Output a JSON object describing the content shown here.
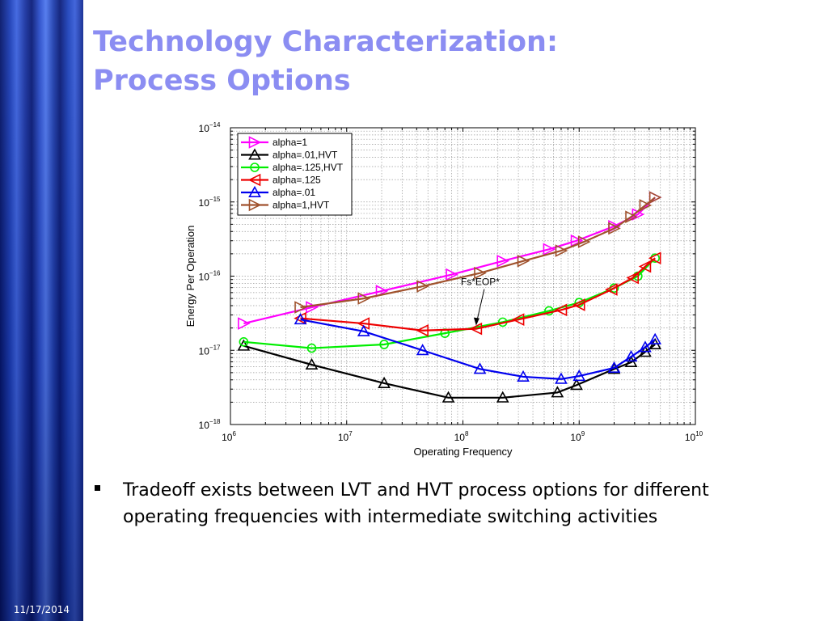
{
  "slide": {
    "title_line1": "Technology Characterization:",
    "title_line2": "Process Options",
    "date": "11/17/2014",
    "bullet": "Tradeoff exists between LVT and HVT process options for different operating frequencies with intermediate switching activities"
  },
  "chart_data": {
    "type": "line",
    "xlabel": "Operating Frequency",
    "ylabel": "Energy Per Operation",
    "xscale": "log",
    "yscale": "log",
    "xlim": [
      1000000,
      10000000000
    ],
    "ylim": [
      1e-18,
      1e-14
    ],
    "x_tick_labels": [
      {
        "base": "10",
        "exp": "6",
        "value": 1000000
      },
      {
        "base": "10",
        "exp": "7",
        "value": 10000000
      },
      {
        "base": "10",
        "exp": "8",
        "value": 100000000
      },
      {
        "base": "10",
        "exp": "9",
        "value": 1000000000
      },
      {
        "base": "10",
        "exp": "10",
        "value": 10000000000
      }
    ],
    "y_tick_labels": [
      {
        "base": "10",
        "exp": "−18",
        "value": 1e-18
      },
      {
        "base": "10",
        "exp": "−17",
        "value": 1e-17
      },
      {
        "base": "10",
        "exp": "−16",
        "value": 1e-16
      },
      {
        "base": "10",
        "exp": "−15",
        "value": 1e-15
      },
      {
        "base": "10",
        "exp": "−14",
        "value": 1e-14
      }
    ],
    "grid": true,
    "legend_position": "top-left",
    "annotation": {
      "text": "Fs*EOP*",
      "arrow_target": {
        "x": 130000000,
        "y": 2e-17
      }
    },
    "series": [
      {
        "name": "alpha=1",
        "color": "#ff00ff",
        "marker": "triangle-right",
        "x": [
          1300000,
          5000000,
          20000000,
          80000000,
          220000000,
          550000000,
          950000000,
          2000000000,
          3200000000,
          4500000000
        ],
        "y": [
          2.3e-17,
          3.8e-17,
          6.3e-17,
          1.05e-16,
          1.6e-16,
          2.3e-16,
          3e-16,
          4.7e-16,
          6.8e-16,
          1.15e-15
        ]
      },
      {
        "name": "alpha=.01,HVT",
        "color": "#000000",
        "marker": "triangle-up",
        "x": [
          1300000,
          5000000,
          21000000,
          75000000,
          220000000,
          650000000,
          950000000,
          2000000000,
          2800000000,
          3700000000,
          4500000000
        ],
        "y": [
          1.15e-17,
          6.4e-18,
          3.6e-18,
          2.3e-18,
          2.3e-18,
          2.7e-18,
          3.4e-18,
          5.6e-18,
          6.9e-18,
          9.5e-18,
          1.2e-17
        ]
      },
      {
        "name": "alpha=.125,HVT",
        "color": "#00ee00",
        "marker": "circle",
        "x": [
          1300000,
          5000000,
          21000000,
          70000000,
          220000000,
          550000000,
          1000000000,
          2000000000,
          3200000000,
          4500000000
        ],
        "y": [
          1.3e-17,
          1.07e-17,
          1.2e-17,
          1.7e-17,
          2.4e-17,
          3.4e-17,
          4.4e-17,
          6.9e-17,
          1e-16,
          1.75e-16
        ]
      },
      {
        "name": "alpha=.125",
        "color": "#ee0000",
        "marker": "triangle-left",
        "x": [
          4000000,
          14000000,
          45000000,
          130000000,
          300000000,
          700000000,
          1000000000,
          1900000000,
          2900000000,
          3700000000,
          4500000000
        ],
        "y": [
          2.7e-17,
          2.3e-17,
          1.85e-17,
          1.95e-17,
          2.6e-17,
          3.5e-17,
          4.1e-17,
          6.6e-17,
          9.5e-17,
          1.35e-16,
          1.75e-16
        ]
      },
      {
        "name": "alpha=.01",
        "color": "#0000ee",
        "marker": "triangle-up",
        "x": [
          4000000,
          14000000,
          45000000,
          140000000,
          330000000,
          700000000,
          1000000000,
          2000000000,
          2800000000,
          3700000000,
          4500000000
        ],
        "y": [
          2.6e-17,
          1.8e-17,
          1e-17,
          5.6e-18,
          4.4e-18,
          4.1e-18,
          4.5e-18,
          5.8e-18,
          8.2e-18,
          1.1e-17,
          1.4e-17
        ]
      },
      {
        "name": "alpha=1,HVT",
        "color": "#a0522d",
        "marker": "triangle-right",
        "x": [
          4000000,
          14000000,
          45000000,
          140000000,
          330000000,
          700000000,
          1100000000,
          2000000000,
          2800000000,
          3700000000,
          4500000000
        ],
        "y": [
          3.8e-17,
          5e-17,
          7.3e-17,
          1.1e-16,
          1.6e-16,
          2.2e-16,
          2.9e-16,
          4.4e-16,
          6.3e-16,
          9e-16,
          1.15e-15
        ]
      }
    ]
  }
}
